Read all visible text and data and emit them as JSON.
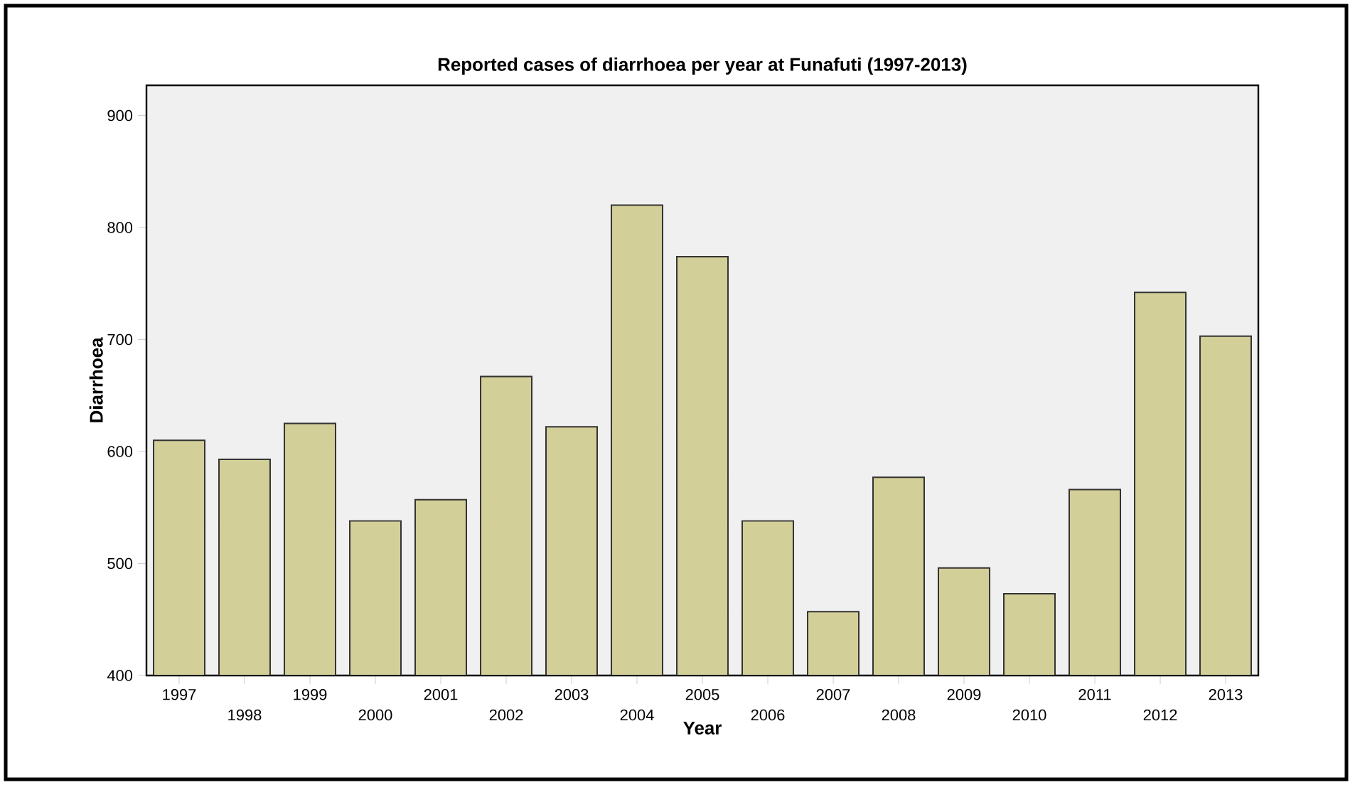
{
  "chart_data": {
    "type": "bar",
    "title": "Reported cases of diarrhoea per year at Funafuti (1997-2013)",
    "xlabel": "Year",
    "ylabel": "Diarrhoea",
    "categories": [
      "1997",
      "1998",
      "1999",
      "2000",
      "2001",
      "2002",
      "2003",
      "2004",
      "2005",
      "2006",
      "2007",
      "2008",
      "2009",
      "2010",
      "2011",
      "2012",
      "2013"
    ],
    "values": [
      610,
      593,
      625,
      538,
      557,
      667,
      622,
      820,
      774,
      538,
      457,
      577,
      496,
      473,
      566,
      742,
      703
    ],
    "color": "#d3cf98",
    "ylim": [
      400,
      927
    ],
    "yticks": [
      400,
      500,
      600,
      700,
      800,
      900
    ],
    "grid": false
  }
}
